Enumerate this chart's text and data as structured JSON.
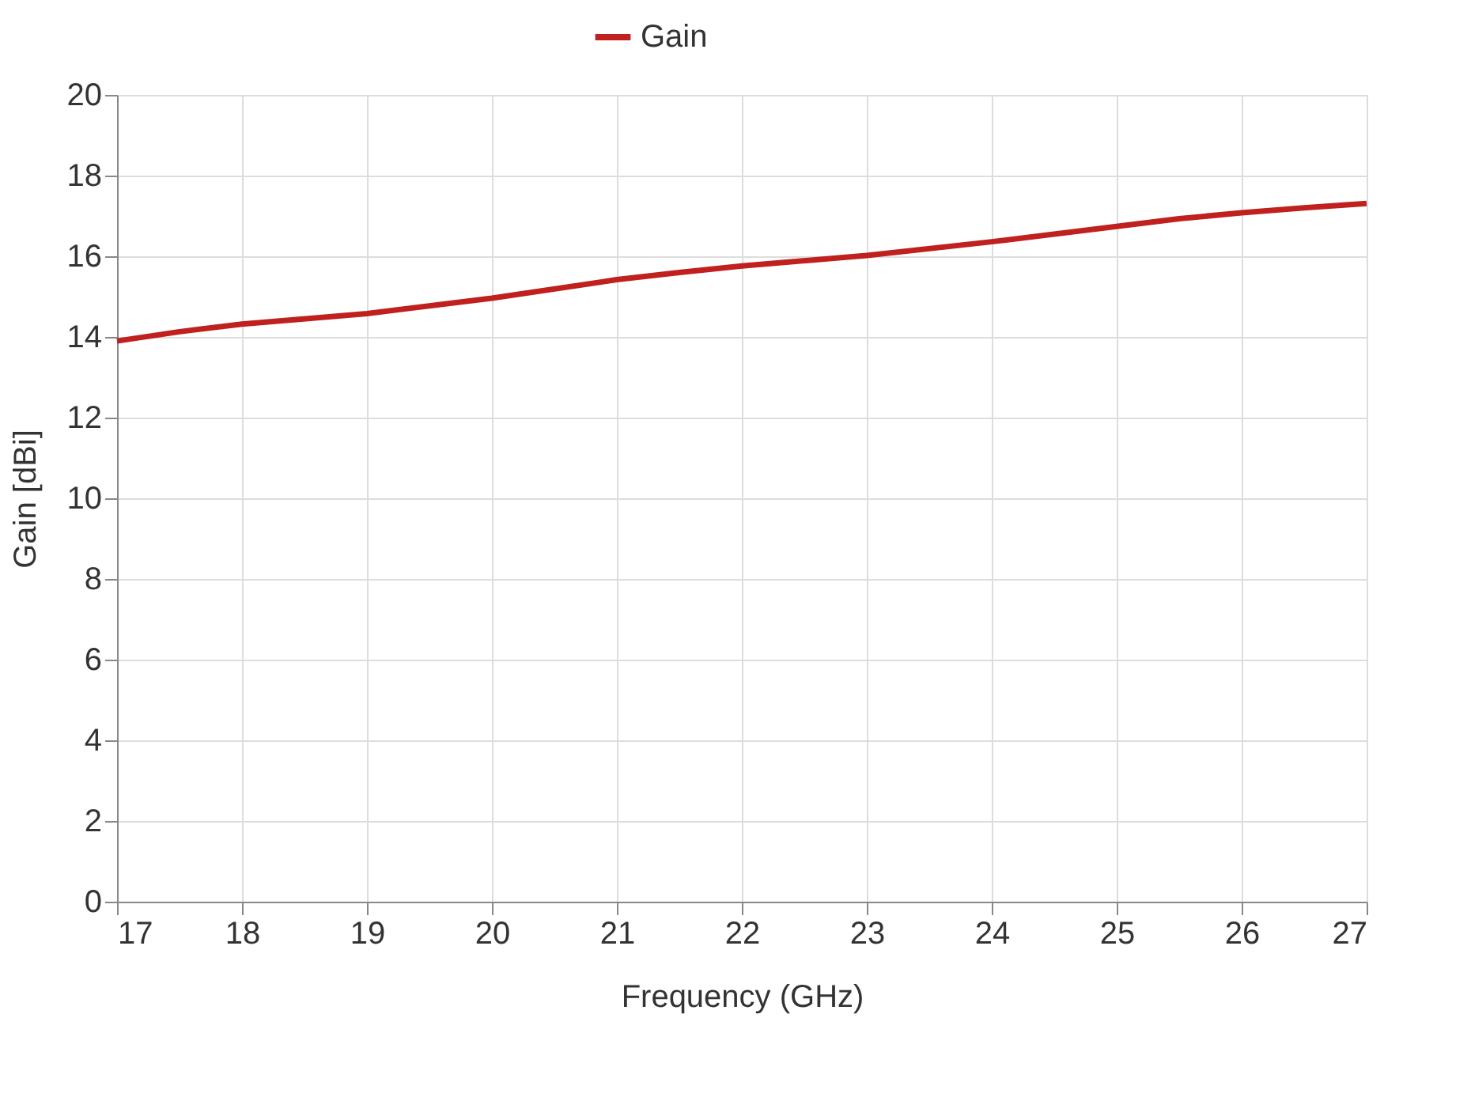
{
  "chart_data": {
    "type": "line",
    "xlabel": "Frequency (GHz)",
    "ylabel": "Gain [dBi]",
    "x": [
      17,
      17.5,
      18,
      19,
      20,
      21,
      21.5,
      22,
      23,
      24,
      25,
      25.5,
      26,
      26.5,
      27
    ],
    "series": [
      {
        "name": "Gain",
        "color": "#c0201e",
        "values": [
          13.9,
          14.13,
          14.32,
          14.58,
          14.96,
          15.42,
          15.6,
          15.76,
          16.02,
          16.36,
          16.74,
          16.93,
          17.08,
          17.2,
          17.31
        ]
      }
    ],
    "xlim": [
      17,
      27
    ],
    "xticks": [
      17,
      18,
      19,
      20,
      21,
      22,
      23,
      24,
      25,
      26,
      27
    ],
    "ylim": [
      0,
      20
    ],
    "yticks": [
      0,
      2,
      4,
      6,
      8,
      10,
      12,
      14,
      16,
      18,
      20
    ],
    "grid": true,
    "legend": "top",
    "marker": "none",
    "line_style": "solid"
  }
}
